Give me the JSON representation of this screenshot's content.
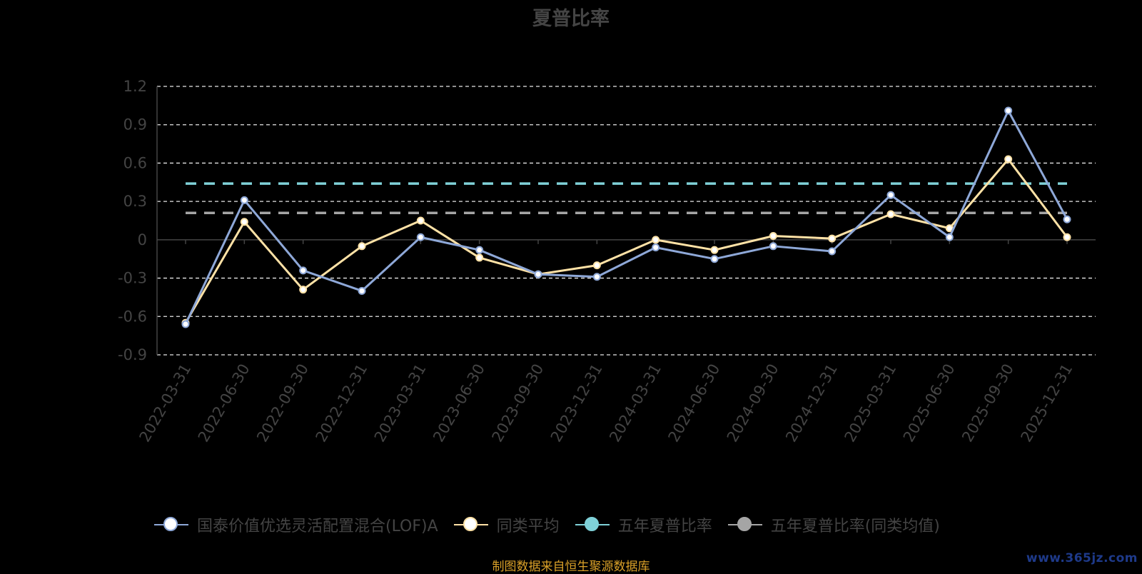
{
  "title": "夏普比率",
  "chart_data": {
    "type": "line",
    "title": "夏普比率",
    "categories": [
      "2022-03-31",
      "2022-06-30",
      "2022-09-30",
      "2022-12-31",
      "2023-03-31",
      "2023-06-30",
      "2023-09-30",
      "2023-12-31",
      "2024-03-31",
      "2024-06-30",
      "2024-09-30",
      "2024-12-31",
      "2025-03-31",
      "2025-06-30",
      "2025-09-30",
      "2025-12-31"
    ],
    "ylim": [
      -0.9,
      1.2
    ],
    "yticks": [
      "1.2",
      "0.9",
      "0.6",
      "0.3",
      "0",
      "-0.3",
      "-0.6",
      "-0.9"
    ],
    "grid": true,
    "legend_position": "bottom",
    "series": [
      {
        "name": "国泰价值优选灵活配置混合(LOF)A",
        "color": "#8ea8d8",
        "values": [
          -0.66,
          0.31,
          -0.24,
          -0.4,
          0.02,
          -0.08,
          -0.27,
          -0.29,
          -0.06,
          -0.15,
          -0.05,
          -0.09,
          0.35,
          0.02,
          1.01,
          0.16
        ]
      },
      {
        "name": "同类平均",
        "color": "#ffe2a6",
        "values": [
          -0.65,
          0.14,
          -0.39,
          -0.05,
          0.15,
          -0.14,
          -0.27,
          -0.2,
          0.0,
          -0.08,
          0.03,
          0.01,
          0.2,
          0.09,
          0.63,
          0.02
        ]
      },
      {
        "name": "五年夏普比率",
        "color": "#7fd1d8",
        "dashed": true,
        "value": 0.44
      },
      {
        "name": "五年夏普比率(同类均值)",
        "color": "#a5a5a5",
        "dashed": true,
        "value": 0.21
      }
    ]
  },
  "legend": [
    {
      "label": "国泰价值优选灵活配置混合(LOF)A",
      "line_color": "#8ea8d8",
      "fill": "#ffffff",
      "border": "#8ea8d8"
    },
    {
      "label": "同类平均",
      "line_color": "#ffe2a6",
      "fill": "#ffffff",
      "border": "#ffe2a6"
    },
    {
      "label": "五年夏普比率",
      "line_color": "#7fd1d8",
      "fill": "#7fd1d8",
      "border": "#7fd1d8"
    },
    {
      "label": "五年夏普比率(同类均值)",
      "line_color": "#a5a5a5",
      "fill": "#a5a5a5",
      "border": "#a5a5a5"
    }
  ],
  "source_text": "制图数据来自恒生聚源数据库",
  "watermark": "www.365jz.com"
}
